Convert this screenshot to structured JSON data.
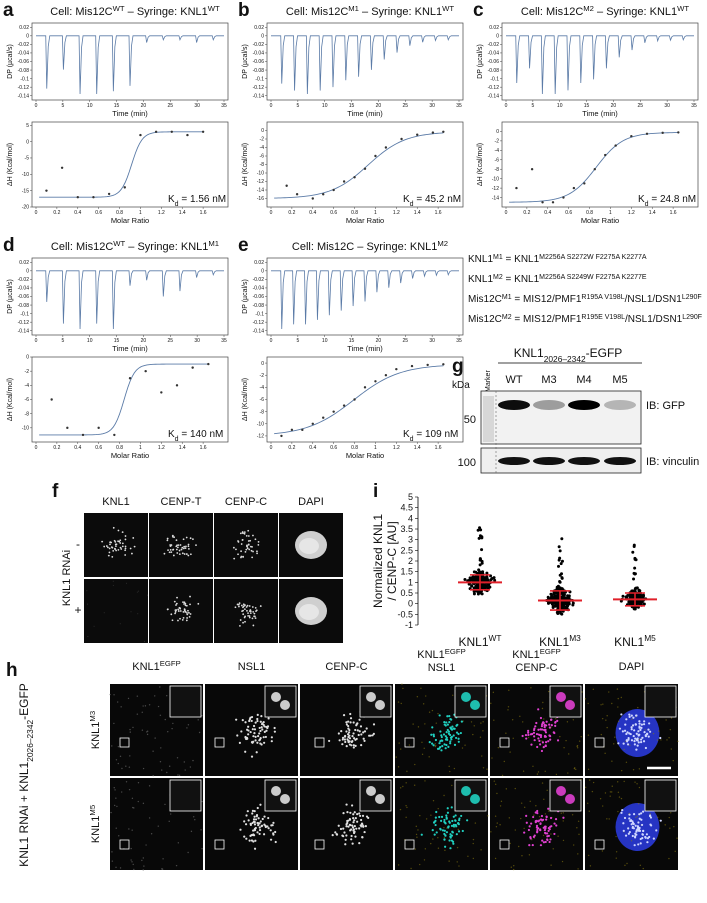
{
  "itc": [
    {
      "letter": "a",
      "title": [
        {
          "t": "Cell: Mis12C"
        },
        {
          "sup": "WT"
        },
        {
          "t": " – Syringe: KNL1"
        },
        {
          "sup": "WT"
        }
      ],
      "top": {
        "ylabel": "DP (µcal/s)",
        "xlabel": "Time (min)",
        "xlim": [
          0,
          35
        ],
        "xticks": [
          0,
          5,
          10,
          15,
          20,
          25,
          30,
          35
        ],
        "ylim": [
          -0.15,
          0.03
        ],
        "yticks": [
          0.02,
          0,
          -0.02,
          -0.04,
          -0.06,
          -0.08,
          -0.1,
          -0.12,
          -0.14
        ]
      },
      "bottom": {
        "ylabel": "ΔH (Kcal/mol)",
        "xlabel": "Molar Ratio",
        "xlim": [
          0,
          1.8
        ],
        "xticks": [
          0,
          0.2,
          0.4,
          0.6,
          0.8,
          1,
          1.2,
          1.4,
          1.6
        ],
        "ylim": [
          -20,
          6
        ],
        "yticks": [
          -20,
          -15,
          -10,
          -5,
          0,
          5
        ],
        "x": [
          0.1,
          0.25,
          0.4,
          0.55,
          0.7,
          0.85,
          1.0,
          1.15,
          1.3,
          1.45,
          1.6
        ],
        "y": [
          -15,
          -8,
          -17,
          -17,
          -16,
          -14,
          2,
          3,
          3,
          2,
          3
        ],
        "kd": [
          {
            "t": "K"
          },
          {
            "sub": "d"
          },
          {
            "t": " = 1.56 nM"
          }
        ]
      }
    },
    {
      "letter": "b",
      "title": [
        {
          "t": "Cell: Mis12C"
        },
        {
          "sup": "M1"
        },
        {
          "t": " – Syringe: KNL1"
        },
        {
          "sup": "WT"
        }
      ],
      "top": {
        "ylabel": "DP (µcal/s)",
        "xlabel": "Time (min)",
        "xlim": [
          0,
          35
        ],
        "xticks": [
          0,
          5,
          10,
          15,
          20,
          25,
          30,
          35
        ],
        "ylim": [
          -0.15,
          0.03
        ],
        "yticks": [
          0.02,
          0,
          -0.02,
          -0.04,
          -0.06,
          -0.08,
          -0.1,
          -0.12,
          -0.14
        ]
      },
      "bottom": {
        "ylabel": "ΔH (Kcal/mol)",
        "xlabel": "Molar Ratio",
        "xlim": [
          0,
          1.8
        ],
        "xticks": [
          0,
          0.2,
          0.4,
          0.6,
          0.8,
          1,
          1.2,
          1.4,
          1.6
        ],
        "ylim": [
          -18,
          2
        ],
        "yticks": [
          -16,
          -14,
          -12,
          -10,
          -8,
          -6,
          -4,
          -2,
          0
        ],
        "x": [
          0.15,
          0.25,
          0.4,
          0.5,
          0.6,
          0.7,
          0.8,
          0.9,
          1.0,
          1.1,
          1.25,
          1.4,
          1.55,
          1.65
        ],
        "y": [
          -13,
          -15,
          -16,
          -15,
          -14,
          -12,
          -11,
          -9,
          -6,
          -4,
          -2,
          -1,
          -0.5,
          -0.3
        ],
        "kd": [
          {
            "t": "K"
          },
          {
            "sub": "d"
          },
          {
            "t": " = 45.2 nM"
          }
        ]
      }
    },
    {
      "letter": "c",
      "title": [
        {
          "t": "Cell: Mis12C"
        },
        {
          "sup": "M2"
        },
        {
          "t": " – Syringe: KNL1"
        },
        {
          "sup": "WT"
        }
      ],
      "top": {
        "ylabel": "DP (µcal/s)",
        "xlabel": "Time (min)",
        "xlim": [
          0,
          35
        ],
        "xticks": [
          0,
          5,
          10,
          15,
          20,
          25,
          30,
          35
        ],
        "ylim": [
          -0.15,
          0.03
        ],
        "yticks": [
          0.02,
          0,
          -0.02,
          -0.04,
          -0.06,
          -0.08,
          -0.1,
          -0.12,
          -0.14
        ]
      },
      "bottom": {
        "ylabel": "ΔH (Kcal/mol)",
        "xlabel": "Molar Ratio",
        "xlim": [
          0,
          1.8
        ],
        "xticks": [
          0,
          0.2,
          0.4,
          0.6,
          0.8,
          1,
          1.2,
          1.4,
          1.6
        ],
        "ylim": [
          -16,
          2
        ],
        "yticks": [
          -14,
          -12,
          -10,
          -8,
          -6,
          -4,
          -2,
          0
        ],
        "x": [
          0.1,
          0.25,
          0.35,
          0.45,
          0.55,
          0.65,
          0.75,
          0.85,
          0.95,
          1.05,
          1.2,
          1.35,
          1.5,
          1.65
        ],
        "y": [
          -12,
          -8,
          -15,
          -15,
          -14,
          -12,
          -11,
          -8,
          -5,
          -3,
          -1,
          -0.5,
          -0.3,
          -0.2
        ],
        "kd": [
          {
            "t": "K"
          },
          {
            "sub": "d"
          },
          {
            "t": " = 24.8 nM"
          }
        ]
      }
    },
    {
      "letter": "d",
      "title": [
        {
          "t": "Cell: Mis12C"
        },
        {
          "sup": "WT"
        },
        {
          "t": " – Syringe: KNL1"
        },
        {
          "sup": "M1"
        }
      ],
      "top": {
        "ylabel": "DP (µcal/s)",
        "xlabel": "Time (min)",
        "xlim": [
          0,
          35
        ],
        "xticks": [
          0,
          5,
          10,
          15,
          20,
          25,
          30,
          35
        ],
        "ylim": [
          -0.15,
          0.03
        ],
        "yticks": [
          0.02,
          0,
          -0.02,
          -0.04,
          -0.06,
          -0.08,
          -0.1,
          -0.12,
          -0.14
        ]
      },
      "bottom": {
        "ylabel": "ΔH (Kcal/mol)",
        "xlabel": "Molar Ratio",
        "xlim": [
          0,
          1.8
        ],
        "xticks": [
          0,
          0.2,
          0.4,
          0.6,
          0.8,
          1,
          1.2,
          1.4,
          1.6
        ],
        "ylim": [
          -12,
          0
        ],
        "yticks": [
          -10,
          -8,
          -6,
          -4,
          -2,
          0
        ],
        "x": [
          0.15,
          0.3,
          0.45,
          0.6,
          0.75,
          0.9,
          1.05,
          1.2,
          1.35,
          1.5,
          1.65
        ],
        "y": [
          -6,
          -10,
          -11,
          -10,
          -11,
          -3,
          -2,
          -5,
          -4,
          -1.5,
          -1
        ],
        "kd": [
          {
            "t": "K"
          },
          {
            "sub": "d"
          },
          {
            "t": " = 140 nM"
          }
        ]
      }
    },
    {
      "letter": "e",
      "title": [
        {
          "t": "Cell: Mis12C – Syringe: KNL1"
        },
        {
          "sup": "M2"
        }
      ],
      "top": {
        "ylabel": "DP (µcal/s)",
        "xlabel": "Time (min)",
        "xlim": [
          0,
          35
        ],
        "xticks": [
          0,
          5,
          10,
          15,
          20,
          25,
          30,
          35
        ],
        "ylim": [
          -0.15,
          0.03
        ],
        "yticks": [
          0.02,
          0,
          -0.02,
          -0.04,
          -0.06,
          -0.08,
          -0.1,
          -0.12,
          -0.14
        ]
      },
      "bottom": {
        "ylabel": "ΔH (Kcal/mol)",
        "xlabel": "Molar Ratio",
        "xlim": [
          0,
          1.8
        ],
        "xticks": [
          0,
          0.2,
          0.4,
          0.6,
          0.8,
          1,
          1.2,
          1.4,
          1.6
        ],
        "ylim": [
          -13,
          1
        ],
        "yticks": [
          -12,
          -10,
          -8,
          -6,
          -4,
          -2,
          0
        ],
        "x": [
          0.1,
          0.2,
          0.3,
          0.4,
          0.5,
          0.6,
          0.7,
          0.8,
          0.9,
          1.0,
          1.1,
          1.2,
          1.35,
          1.5,
          1.65
        ],
        "y": [
          -12,
          -11,
          -11,
          -10,
          -9,
          -8,
          -7,
          -6,
          -4,
          -3,
          -2,
          -1,
          -0.5,
          -0.3,
          -0.2
        ],
        "kd": [
          {
            "t": "K"
          },
          {
            "sub": "d"
          },
          {
            "t": " = 109 nM"
          }
        ]
      }
    }
  ],
  "legend": [
    [
      {
        "t": "KNL1"
      },
      {
        "sup": "M1"
      },
      {
        "t": " = KNL1"
      },
      {
        "sup": "M2256A S2272W F2275A K2277A"
      }
    ],
    [
      {
        "t": "KNL1"
      },
      {
        "sup": "M2"
      },
      {
        "t": " = KNL1"
      },
      {
        "sup": "M2256A S2249W F2275A K2277E"
      }
    ],
    [
      {
        "t": "Mis12C"
      },
      {
        "sup": "M1"
      },
      {
        "t": " = MIS12/PMF1"
      },
      {
        "sup": "R195A V198L"
      },
      {
        "t": "/NSL1/DSN1"
      },
      {
        "sup": "L290F"
      }
    ],
    [
      {
        "t": "Mis12C"
      },
      {
        "sup": "M2"
      },
      {
        "t": " = MIS12/PMF1"
      },
      {
        "sup": "R195E V198L"
      },
      {
        "t": "/NSL1/DSN1"
      },
      {
        "sup": "L290F"
      }
    ]
  ],
  "blot": {
    "letter": "g",
    "title": [
      {
        "t": "KNL1"
      },
      {
        "sub": "2026–2342"
      },
      {
        "t": "-EGFP"
      }
    ],
    "kda": "kDa",
    "marker": "Marker",
    "lanes": [
      "WT",
      "M3",
      "M4",
      "M5"
    ],
    "probes": [
      "IB: GFP",
      "IB: vinculin"
    ],
    "sizes": [
      "50",
      "100"
    ]
  },
  "microscopy_f": {
    "letter": "f",
    "columns": [
      "KNL1",
      "CENP-T",
      "CENP-C",
      "DAPI"
    ],
    "row_title": "KNL1 RNAi",
    "rows": [
      "-",
      "+"
    ]
  },
  "quant": {
    "letter": "i",
    "ylabel": [
      "Normalized KNL1",
      "/ CENP-C [AU]"
    ],
    "ylim": [
      -1,
      5
    ],
    "yticks": [
      -1,
      -0.5,
      0,
      0.5,
      1,
      1.5,
      2,
      2.5,
      3,
      3.5,
      4,
      4.5,
      5
    ],
    "categories": [
      [
        {
          "t": "KNL1"
        },
        {
          "sup": "WT"
        }
      ],
      [
        {
          "t": "KNL1"
        },
        {
          "sup": "M3"
        }
      ],
      [
        {
          "t": "KNL1"
        },
        {
          "sup": "M5"
        }
      ]
    ],
    "means": [
      1.0,
      0.15,
      0.2
    ],
    "sd": [
      0.35,
      0.45,
      0.3
    ]
  },
  "microscopy_h": {
    "letter": "h",
    "columns": [
      [
        [
          {
            "t": "KNL1"
          },
          {
            "sup": "EGFP"
          }
        ]
      ],
      [
        [
          {
            "t": "NSL1"
          }
        ]
      ],
      [
        [
          {
            "t": "CENP-C"
          }
        ]
      ],
      [
        [
          {
            "t": "KNL1"
          },
          {
            "sup": "EGFP"
          }
        ],
        [
          {
            "t": "NSL1"
          }
        ]
      ],
      [
        [
          {
            "t": "KNL1"
          },
          {
            "sup": "EGFP"
          }
        ],
        [
          {
            "t": "CENP-C"
          }
        ]
      ],
      [
        [
          {
            "t": "DAPI"
          }
        ]
      ]
    ],
    "side_label": [
      {
        "t": "KNL1 RNAi + KNL1"
      },
      {
        "sub": "2026–2342"
      },
      {
        "t": "-EGFP"
      }
    ],
    "rows": [
      [
        {
          "t": "KNL1"
        },
        {
          "sup": "M3"
        }
      ],
      [
        {
          "t": "KNL1"
        },
        {
          "sup": "M5"
        }
      ]
    ]
  }
}
